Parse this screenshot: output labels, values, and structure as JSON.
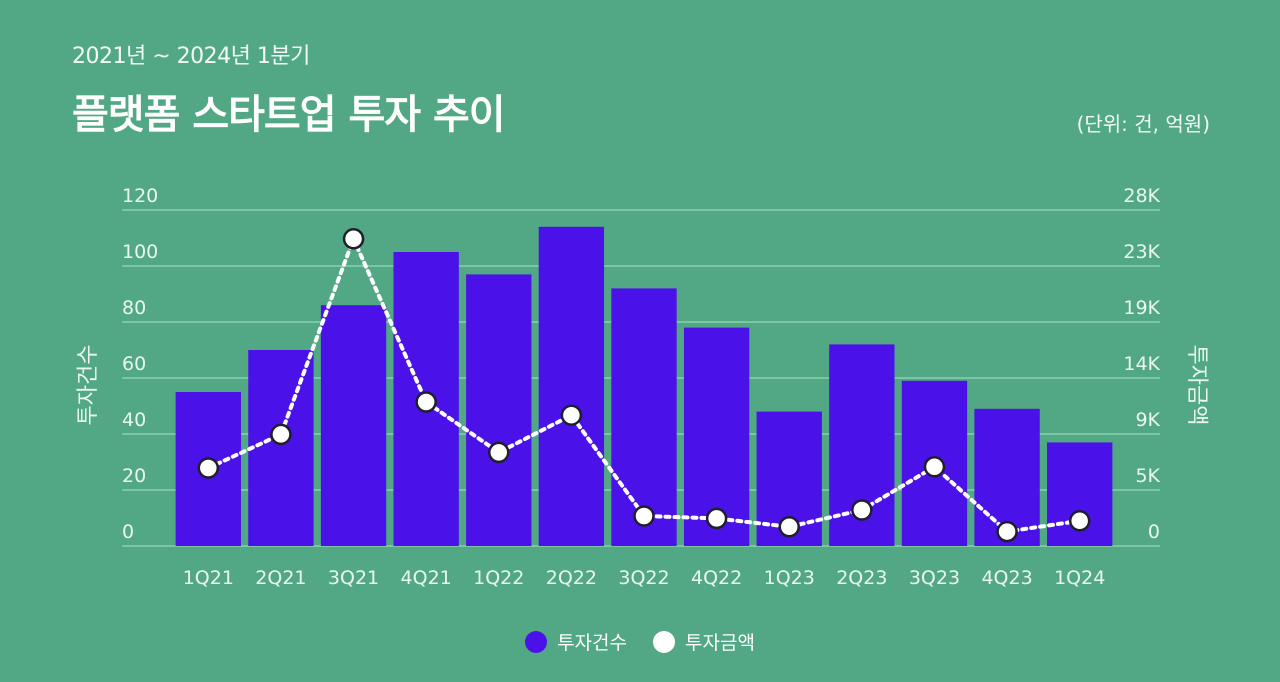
{
  "header": {
    "subtitle": "2021년 ~ 2024년 1분기",
    "title": "플랫폼 스타트업 투자 추이",
    "unit": "(단위: 건, 억원)"
  },
  "colors": {
    "background": "#52a884",
    "bars": "#4a12e8",
    "line": "#ffffff",
    "point_outline": "#1f1f2e",
    "grid": "#7cc6a3"
  },
  "chart_data": {
    "type": "bar",
    "categories": [
      "1Q21",
      "2Q21",
      "3Q21",
      "4Q21",
      "1Q22",
      "2Q22",
      "3Q22",
      "4Q22",
      "1Q23",
      "2Q23",
      "3Q23",
      "4Q23",
      "1Q24"
    ],
    "series": [
      {
        "name": "투자건수",
        "type": "bar",
        "axis": "left",
        "values": [
          55,
          70,
          86,
          105,
          97,
          114,
          92,
          78,
          48,
          72,
          59,
          49,
          37
        ]
      },
      {
        "name": "투자금액",
        "type": "line",
        "style": "dotted",
        "axis": "right",
        "values": [
          6500,
          9300,
          25600,
          12000,
          7800,
          10900,
          2500,
          2300,
          1600,
          3000,
          6600,
          1200,
          2100
        ]
      }
    ],
    "ylabel": "투자건수",
    "y2label": "투자금액",
    "ylim": [
      0,
      125
    ],
    "y2lim": [
      0,
      29167
    ],
    "yticks": [
      0,
      20,
      40,
      60,
      80,
      100,
      120
    ],
    "y2ticks": [
      {
        "value": 0,
        "label": "0"
      },
      {
        "value": 4667,
        "label": "5K"
      },
      {
        "value": 9333,
        "label": "9K"
      },
      {
        "value": 14000,
        "label": "14K"
      },
      {
        "value": 18667,
        "label": "19K"
      },
      {
        "value": 23333,
        "label": "23K"
      },
      {
        "value": 28000,
        "label": "28K"
      }
    ],
    "grid": true,
    "legend": "bottom-center"
  }
}
